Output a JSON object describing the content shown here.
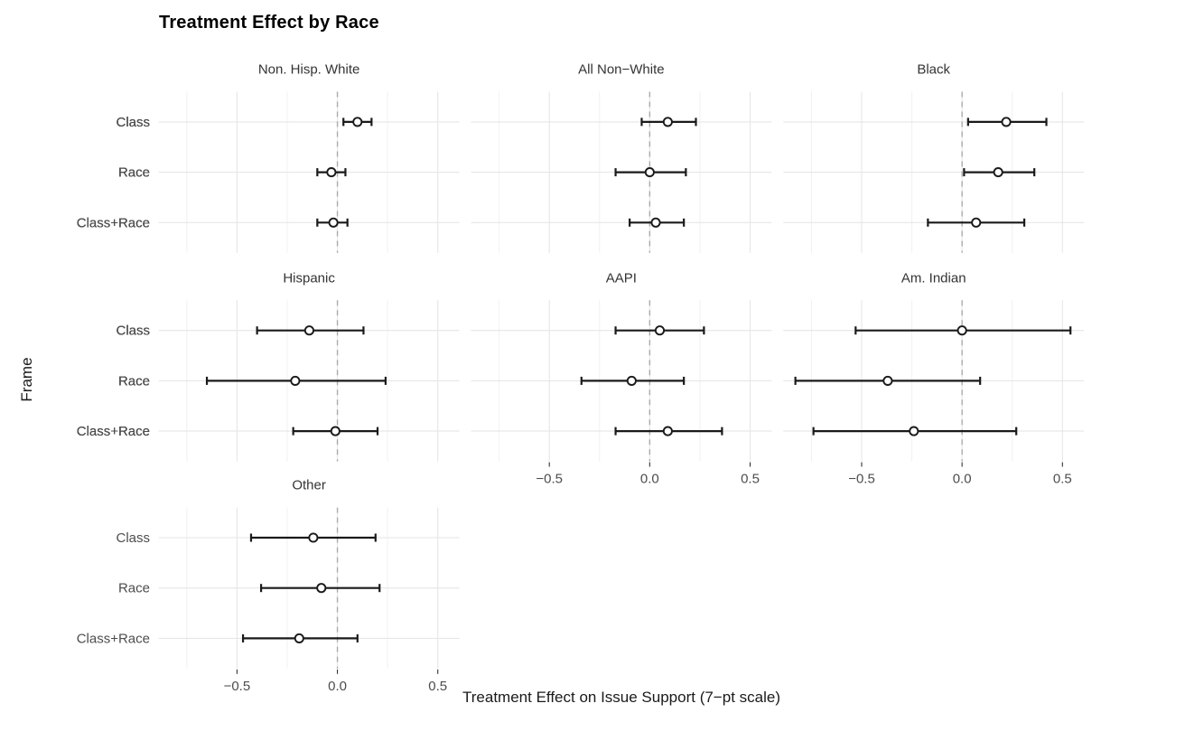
{
  "chart_data": {
    "type": "scatter",
    "subtype": "faceted-errorbar (coefficient plot)",
    "title": "Treatment Effect by Race",
    "xlabel": "Treatment Effect on Issue Support (7−pt scale)",
    "ylabel": "Frame",
    "frames": [
      "Class",
      "Race",
      "Class+Race"
    ],
    "x_ticks": [
      -0.5,
      0.0,
      0.5
    ],
    "x_tick_labels": [
      "−0.5",
      "0.0",
      "0.5"
    ],
    "x_minor_gridlines": [
      -0.75,
      -0.25,
      0.25
    ],
    "xlim": [
      -0.89,
      0.607
    ],
    "grid": true,
    "legend": "none",
    "zero_line": {
      "x": 0.0,
      "style": "dashed"
    },
    "colors": {
      "point_stroke": "#1a1a1a",
      "point_fill": "#ffffff",
      "errorbar": "#1a1a1a",
      "zero_line": "#ababab",
      "grid_major": "#e6e6e6",
      "grid_minor": "#f0f0f0",
      "axis_text": "#4d4d4d",
      "facet_text": "#333333",
      "tick_mark": "#333333"
    },
    "facets": [
      {
        "label": "Non. Hisp. White",
        "row": 0,
        "col": 0,
        "points": [
          {
            "frame": "Class",
            "est": 0.1,
            "lo": 0.03,
            "hi": 0.17
          },
          {
            "frame": "Race",
            "est": -0.03,
            "lo": -0.1,
            "hi": 0.04
          },
          {
            "frame": "Class+Race",
            "est": -0.02,
            "lo": -0.1,
            "hi": 0.05
          }
        ]
      },
      {
        "label": "All Non−White",
        "row": 0,
        "col": 1,
        "points": [
          {
            "frame": "Class",
            "est": 0.09,
            "lo": -0.04,
            "hi": 0.23
          },
          {
            "frame": "Race",
            "est": 0.0,
            "lo": -0.17,
            "hi": 0.18
          },
          {
            "frame": "Class+Race",
            "est": 0.03,
            "lo": -0.1,
            "hi": 0.17
          }
        ]
      },
      {
        "label": "Black",
        "row": 0,
        "col": 2,
        "points": [
          {
            "frame": "Class",
            "est": 0.22,
            "lo": 0.03,
            "hi": 0.42
          },
          {
            "frame": "Race",
            "est": 0.18,
            "lo": 0.01,
            "hi": 0.36
          },
          {
            "frame": "Class+Race",
            "est": 0.07,
            "lo": -0.17,
            "hi": 0.31
          }
        ]
      },
      {
        "label": "Hispanic",
        "row": 1,
        "col": 0,
        "points": [
          {
            "frame": "Class",
            "est": -0.14,
            "lo": -0.4,
            "hi": 0.13
          },
          {
            "frame": "Race",
            "est": -0.21,
            "lo": -0.65,
            "hi": 0.24
          },
          {
            "frame": "Class+Race",
            "est": -0.01,
            "lo": -0.22,
            "hi": 0.2
          }
        ]
      },
      {
        "label": "AAPI",
        "row": 1,
        "col": 1,
        "points": [
          {
            "frame": "Class",
            "est": 0.05,
            "lo": -0.17,
            "hi": 0.27
          },
          {
            "frame": "Race",
            "est": -0.09,
            "lo": -0.34,
            "hi": 0.17
          },
          {
            "frame": "Class+Race",
            "est": 0.09,
            "lo": -0.17,
            "hi": 0.36
          }
        ]
      },
      {
        "label": "Am. Indian",
        "row": 1,
        "col": 2,
        "points": [
          {
            "frame": "Class",
            "est": 0.0,
            "lo": -0.53,
            "hi": 0.54
          },
          {
            "frame": "Race",
            "est": -0.37,
            "lo": -0.83,
            "hi": 0.09
          },
          {
            "frame": "Class+Race",
            "est": -0.24,
            "lo": -0.74,
            "hi": 0.27
          }
        ]
      },
      {
        "label": "Other",
        "row": 2,
        "col": 0,
        "points": [
          {
            "frame": "Class",
            "est": -0.12,
            "lo": -0.43,
            "hi": 0.19
          },
          {
            "frame": "Race",
            "est": -0.08,
            "lo": -0.38,
            "hi": 0.21
          },
          {
            "frame": "Class+Race",
            "est": -0.19,
            "lo": -0.47,
            "hi": 0.1
          }
        ]
      }
    ]
  }
}
